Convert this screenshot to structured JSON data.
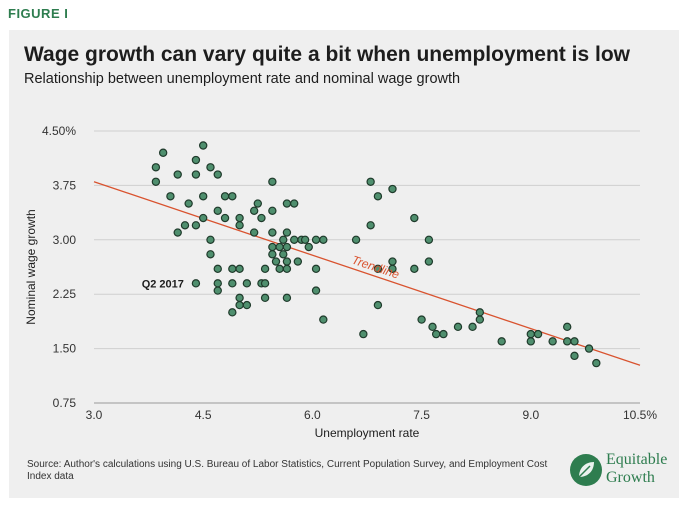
{
  "figure_label": "FIGURE I",
  "source_note": "Source: Author's calculations using U.S. Bureau of Labor Statistics, Current Population Survey, and Employment Cost Index data",
  "brand": {
    "line1": "Equitable",
    "line2": "Growth"
  },
  "colors": {
    "accent": "#2e7d4f",
    "point_fill": "#4f8f6e",
    "point_stroke": "#1f3a2b",
    "trendline": "#d9532f",
    "panel_bg": "#efefef",
    "text": "#1d1d1d"
  },
  "chart_data": {
    "type": "scatter",
    "title": "Wage growth can vary quite a bit when unemployment is low",
    "subtitle": "Relationship between unemployment rate and nominal wage growth",
    "xlabel": "Unemployment rate",
    "ylabel": "Nominal wage growth",
    "xlim": [
      3.0,
      10.5
    ],
    "ylim": [
      0.75,
      4.5
    ],
    "xticks": [
      3.0,
      4.5,
      6.0,
      7.5,
      9.0,
      10.5
    ],
    "xtick_labels": [
      "3.0",
      "4.5",
      "6.0",
      "7.5",
      "9.0",
      "10.5%"
    ],
    "yticks": [
      0.75,
      1.5,
      2.25,
      3.0,
      3.75,
      4.5
    ],
    "ytick_labels": [
      "0.75",
      "1.50",
      "2.25",
      "3.00",
      "3.75",
      "4.50%"
    ],
    "grid": true,
    "series": [
      {
        "name": "",
        "points": [
          {
            "x": 3.85,
            "y": 4.0
          },
          {
            "x": 3.85,
            "y": 3.8
          },
          {
            "x": 3.95,
            "y": 4.2
          },
          {
            "x": 4.05,
            "y": 3.6
          },
          {
            "x": 4.15,
            "y": 3.1
          },
          {
            "x": 4.15,
            "y": 3.9
          },
          {
            "x": 4.25,
            "y": 3.2
          },
          {
            "x": 4.3,
            "y": 3.5
          },
          {
            "x": 4.4,
            "y": 4.1
          },
          {
            "x": 4.4,
            "y": 3.9
          },
          {
            "x": 4.4,
            "y": 3.2
          },
          {
            "x": 4.5,
            "y": 4.3
          },
          {
            "x": 4.5,
            "y": 3.6
          },
          {
            "x": 4.5,
            "y": 3.3
          },
          {
            "x": 4.6,
            "y": 4.0
          },
          {
            "x": 4.6,
            "y": 3.0
          },
          {
            "x": 4.6,
            "y": 2.8
          },
          {
            "x": 4.7,
            "y": 3.9
          },
          {
            "x": 4.7,
            "y": 3.4
          },
          {
            "x": 4.7,
            "y": 2.6
          },
          {
            "x": 4.7,
            "y": 2.4
          },
          {
            "x": 4.7,
            "y": 2.3
          },
          {
            "x": 4.8,
            "y": 3.6
          },
          {
            "x": 4.8,
            "y": 3.3
          },
          {
            "x": 4.9,
            "y": 3.6
          },
          {
            "x": 4.9,
            "y": 2.6
          },
          {
            "x": 4.9,
            "y": 2.4
          },
          {
            "x": 4.9,
            "y": 2.0
          },
          {
            "x": 5.0,
            "y": 3.3
          },
          {
            "x": 5.0,
            "y": 3.2
          },
          {
            "x": 5.0,
            "y": 2.6
          },
          {
            "x": 5.0,
            "y": 2.2
          },
          {
            "x": 5.0,
            "y": 2.1
          },
          {
            "x": 5.1,
            "y": 2.4
          },
          {
            "x": 5.1,
            "y": 2.1
          },
          {
            "x": 5.2,
            "y": 3.4
          },
          {
            "x": 5.2,
            "y": 3.1
          },
          {
            "x": 5.25,
            "y": 3.5
          },
          {
            "x": 5.3,
            "y": 3.3
          },
          {
            "x": 5.3,
            "y": 2.4
          },
          {
            "x": 5.35,
            "y": 2.6
          },
          {
            "x": 5.35,
            "y": 2.4
          },
          {
            "x": 5.35,
            "y": 2.2
          },
          {
            "x": 5.45,
            "y": 3.8
          },
          {
            "x": 5.45,
            "y": 3.4
          },
          {
            "x": 5.45,
            "y": 3.1
          },
          {
            "x": 5.45,
            "y": 2.9
          },
          {
            "x": 5.45,
            "y": 2.8
          },
          {
            "x": 5.5,
            "y": 2.7
          },
          {
            "x": 5.55,
            "y": 2.9
          },
          {
            "x": 5.55,
            "y": 2.6
          },
          {
            "x": 5.6,
            "y": 3.0
          },
          {
            "x": 5.6,
            "y": 2.8
          },
          {
            "x": 5.65,
            "y": 3.5
          },
          {
            "x": 5.65,
            "y": 3.1
          },
          {
            "x": 5.65,
            "y": 2.9
          },
          {
            "x": 5.65,
            "y": 2.7
          },
          {
            "x": 5.65,
            "y": 2.6
          },
          {
            "x": 5.65,
            "y": 2.2
          },
          {
            "x": 5.75,
            "y": 3.5
          },
          {
            "x": 5.75,
            "y": 3.0
          },
          {
            "x": 5.8,
            "y": 2.7
          },
          {
            "x": 5.85,
            "y": 3.0
          },
          {
            "x": 5.9,
            "y": 3.0
          },
          {
            "x": 5.95,
            "y": 2.9
          },
          {
            "x": 6.05,
            "y": 3.0
          },
          {
            "x": 6.05,
            "y": 2.6
          },
          {
            "x": 6.05,
            "y": 2.3
          },
          {
            "x": 6.15,
            "y": 3.0
          },
          {
            "x": 6.15,
            "y": 1.9
          },
          {
            "x": 6.6,
            "y": 3.0
          },
          {
            "x": 6.7,
            "y": 1.7
          },
          {
            "x": 6.8,
            "y": 3.8
          },
          {
            "x": 6.8,
            "y": 3.2
          },
          {
            "x": 6.9,
            "y": 3.6
          },
          {
            "x": 6.9,
            "y": 2.6
          },
          {
            "x": 6.9,
            "y": 2.1
          },
          {
            "x": 7.1,
            "y": 3.7
          },
          {
            "x": 7.1,
            "y": 2.7
          },
          {
            "x": 7.1,
            "y": 2.6
          },
          {
            "x": 7.4,
            "y": 3.3
          },
          {
            "x": 7.4,
            "y": 2.6
          },
          {
            "x": 7.5,
            "y": 1.9
          },
          {
            "x": 7.6,
            "y": 3.0
          },
          {
            "x": 7.6,
            "y": 2.7
          },
          {
            "x": 7.65,
            "y": 1.8
          },
          {
            "x": 7.7,
            "y": 1.7
          },
          {
            "x": 7.8,
            "y": 1.7
          },
          {
            "x": 8.0,
            "y": 1.8
          },
          {
            "x": 8.2,
            "y": 1.8
          },
          {
            "x": 8.3,
            "y": 2.0
          },
          {
            "x": 8.3,
            "y": 1.9
          },
          {
            "x": 8.6,
            "y": 1.6
          },
          {
            "x": 9.0,
            "y": 1.7
          },
          {
            "x": 9.0,
            "y": 1.6
          },
          {
            "x": 9.1,
            "y": 1.7
          },
          {
            "x": 9.3,
            "y": 1.6
          },
          {
            "x": 9.5,
            "y": 1.8
          },
          {
            "x": 9.5,
            "y": 1.6
          },
          {
            "x": 9.6,
            "y": 1.6
          },
          {
            "x": 9.6,
            "y": 1.4
          },
          {
            "x": 9.8,
            "y": 1.5
          },
          {
            "x": 9.9,
            "y": 1.3
          },
          {
            "x": 4.4,
            "y": 2.4
          }
        ]
      }
    ],
    "trendline": {
      "label": "Trendline",
      "x": [
        3.0,
        10.5
      ],
      "y": [
        3.8,
        1.27
      ]
    },
    "annotations": [
      {
        "text": "Q2 2017",
        "x": 4.4,
        "y": 2.4
      }
    ]
  }
}
